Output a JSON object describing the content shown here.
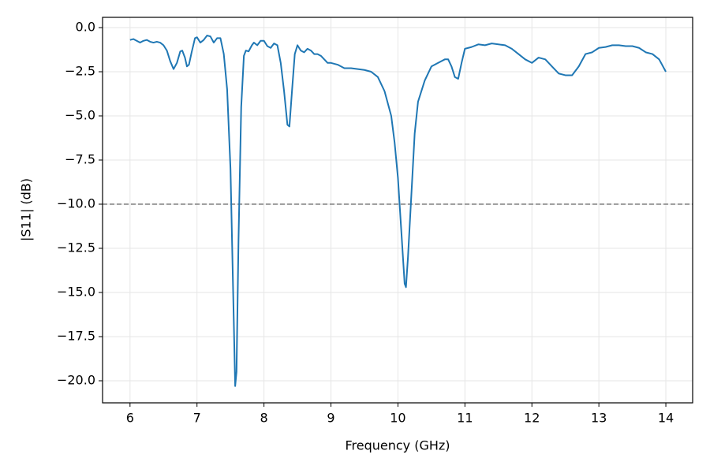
{
  "chart_data": {
    "type": "line",
    "xlabel": "Frequency (GHz)",
    "ylabel": "|S11| (dB)",
    "x": [
      6.0,
      6.05,
      6.1,
      6.15,
      6.2,
      6.25,
      6.3,
      6.35,
      6.4,
      6.45,
      6.5,
      6.55,
      6.6,
      6.65,
      6.7,
      6.75,
      6.78,
      6.82,
      6.85,
      6.88,
      6.92,
      6.97,
      7.0,
      7.05,
      7.1,
      7.15,
      7.2,
      7.25,
      7.3,
      7.35,
      7.4,
      7.45,
      7.5,
      7.54,
      7.57,
      7.59,
      7.62,
      7.66,
      7.7,
      7.73,
      7.77,
      7.82,
      7.85,
      7.9,
      7.95,
      8.0,
      8.05,
      8.1,
      8.15,
      8.2,
      8.25,
      8.3,
      8.35,
      8.38,
      8.42,
      8.46,
      8.5,
      8.55,
      8.6,
      8.65,
      8.7,
      8.75,
      8.8,
      8.85,
      8.9,
      8.95,
      9.0,
      9.1,
      9.2,
      9.3,
      9.4,
      9.5,
      9.6,
      9.7,
      9.8,
      9.9,
      9.95,
      10.0,
      10.05,
      10.1,
      10.12,
      10.15,
      10.2,
      10.25,
      10.3,
      10.4,
      10.5,
      10.6,
      10.7,
      10.75,
      10.8,
      10.85,
      10.9,
      10.95,
      11.0,
      11.1,
      11.2,
      11.3,
      11.4,
      11.5,
      11.6,
      11.7,
      11.8,
      11.9,
      12.0,
      12.1,
      12.2,
      12.3,
      12.4,
      12.5,
      12.6,
      12.7,
      12.8,
      12.9,
      13.0,
      13.1,
      13.2,
      13.3,
      13.4,
      13.5,
      13.6,
      13.7,
      13.8,
      13.9,
      14.0
    ],
    "values": [
      -0.7,
      -0.65,
      -0.75,
      -0.85,
      -0.75,
      -0.7,
      -0.8,
      -0.85,
      -0.8,
      -0.85,
      -1.0,
      -1.3,
      -1.9,
      -2.35,
      -2.0,
      -1.35,
      -1.3,
      -1.7,
      -2.2,
      -2.1,
      -1.4,
      -0.6,
      -0.55,
      -0.85,
      -0.7,
      -0.45,
      -0.5,
      -0.85,
      -0.6,
      -0.6,
      -1.5,
      -3.5,
      -8.0,
      -15.0,
      -20.3,
      -19.5,
      -12.0,
      -4.5,
      -1.6,
      -1.3,
      -1.35,
      -1.0,
      -0.85,
      -1.0,
      -0.75,
      -0.75,
      -1.05,
      -1.15,
      -0.9,
      -1.0,
      -2.0,
      -3.6,
      -5.5,
      -5.6,
      -3.5,
      -1.5,
      -1.0,
      -1.3,
      -1.4,
      -1.2,
      -1.3,
      -1.5,
      -1.5,
      -1.6,
      -1.8,
      -2.0,
      -2.0,
      -2.1,
      -2.3,
      -2.3,
      -2.35,
      -2.4,
      -2.5,
      -2.8,
      -3.6,
      -5.0,
      -6.5,
      -8.5,
      -11.5,
      -14.5,
      -14.7,
      -13.0,
      -9.5,
      -6.0,
      -4.2,
      -3.0,
      -2.2,
      -2.0,
      -1.8,
      -1.8,
      -2.2,
      -2.8,
      -2.9,
      -2.0,
      -1.2,
      -1.1,
      -0.95,
      -1.0,
      -0.9,
      -0.95,
      -1.0,
      -1.2,
      -1.5,
      -1.8,
      -2.0,
      -1.7,
      -1.8,
      -2.2,
      -2.6,
      -2.7,
      -2.7,
      -2.2,
      -1.5,
      -1.4,
      -1.15,
      -1.1,
      -1.0,
      -1.0,
      -1.05,
      -1.05,
      -1.15,
      -1.4,
      -1.5,
      -1.8,
      -2.5
    ],
    "color": "#1f77b4",
    "hline": -10,
    "xlim": [
      5.59,
      14.4
    ],
    "ylim": [
      -21.25,
      0.58
    ],
    "xticks": [
      6,
      7,
      8,
      9,
      10,
      11,
      12,
      13,
      14
    ],
    "yticks": [
      {
        "value": 0,
        "label": "0.0"
      },
      {
        "value": -2.5,
        "label": "−2.5"
      },
      {
        "value": -5,
        "label": "−5.0"
      },
      {
        "value": -7.5,
        "label": "−7.5"
      },
      {
        "value": -10,
        "label": "−10.0"
      },
      {
        "value": -12.5,
        "label": "−12.5"
      },
      {
        "value": -15,
        "label": "−15.0"
      },
      {
        "value": -17.5,
        "label": "−17.5"
      },
      {
        "value": -20,
        "label": "−20.0"
      }
    ],
    "grid": true
  }
}
